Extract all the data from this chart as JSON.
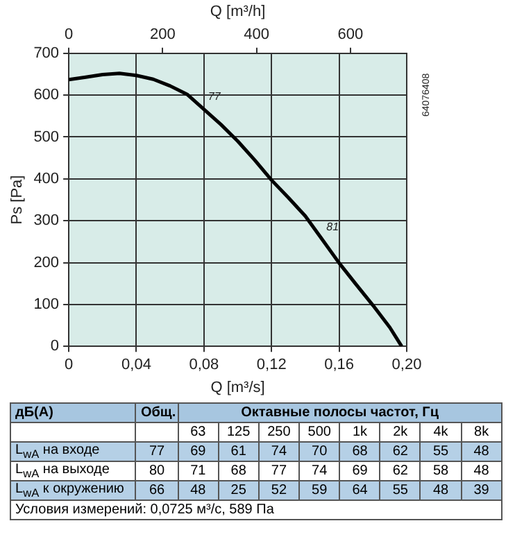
{
  "chart_data": [
    {
      "type": "line",
      "xlabel": "Q [m³/s]",
      "x2label": "Q [m³/h]",
      "ylabel": "Ps [Pa]",
      "xlim": [
        0,
        0.2
      ],
      "xticks": [
        0,
        {
          "value": 0.04,
          "label": "0,04"
        },
        {
          "value": 0.08,
          "label": "0,08"
        },
        {
          "value": 0.12,
          "label": "0,12"
        },
        {
          "value": 0.16,
          "label": "0,16"
        },
        {
          "value": 0.2,
          "label": "0,20"
        }
      ],
      "x2lim": [
        0,
        720
      ],
      "x2ticks": [
        0,
        200,
        400,
        600
      ],
      "ylim": [
        0,
        700
      ],
      "yticks": [
        0,
        100,
        200,
        300,
        400,
        500,
        600,
        700
      ],
      "grid": true,
      "marker": "none",
      "line_style": "solid",
      "series": [
        {
          "color": "#000000",
          "x": [
            0,
            0.01,
            0.02,
            0.03,
            0.04,
            0.05,
            0.06,
            0.07,
            0.08,
            0.09,
            0.1,
            0.11,
            0.12,
            0.13,
            0.14,
            0.15,
            0.16,
            0.17,
            0.18,
            0.19,
            0.197
          ],
          "values": [
            637,
            643,
            649,
            652,
            647,
            638,
            622,
            602,
            566,
            530,
            490,
            445,
            397,
            355,
            311,
            255,
            199,
            148,
            98,
            45,
            0
          ]
        }
      ],
      "annotations": [
        {
          "text": "77",
          "x": 0.08,
          "y": 566
        },
        {
          "text": "81",
          "x": 0.15,
          "y": 255
        },
        "64076408"
      ]
    },
    {
      "type": "other",
      "annotations": [
        "дБ(A)",
        "Общ.",
        "Октавные полосы частот, Гц",
        "63",
        "125",
        "250",
        "500",
        "1k",
        "2k",
        "4k",
        "8k",
        "L$_{wA}$ на входе",
        "77",
        "69",
        "61",
        "74",
        "70",
        "68",
        "62",
        "55",
        "48",
        "L$_{wA}$ на выходе",
        "80",
        "71",
        "68",
        "77",
        "74",
        "69",
        "62",
        "58",
        "48",
        "L$_{wA}$ к окружению",
        "66",
        "48",
        "25",
        "52",
        "59",
        "64",
        "55",
        "48",
        "39",
        "Условия измерений: 0,0725 м³/с, 589 Па"
      ]
    }
  ]
}
